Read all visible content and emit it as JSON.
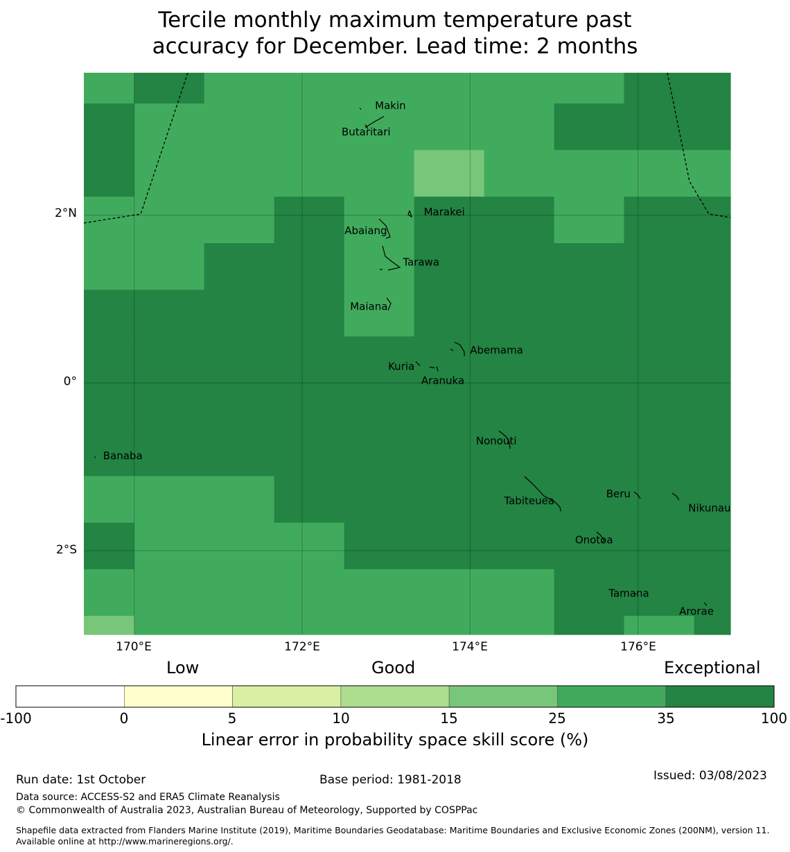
{
  "title": {
    "line1": "Tercile monthly maximum temperature past",
    "line2": "accuracy for December. Lead time: 2 months"
  },
  "map": {
    "lat_labels": [
      "2°N",
      "0°",
      "2°S"
    ],
    "lon_labels": [
      "170°E",
      "172°E",
      "174°E",
      "176°E"
    ],
    "cell_colors": {
      "c4": "#78c679",
      "c5": "#41ab5d",
      "c6": "#238443"
    },
    "grid_cols_deg_e": [
      169.4,
      170.0,
      170.833,
      171.667,
      172.5,
      173.333,
      174.167,
      175.0,
      175.833,
      176.667,
      177.1
    ],
    "grid_rows_deg_n": [
      3.7,
      3.333,
      2.778,
      2.222,
      1.667,
      1.111,
      0.556,
      0.0,
      -0.556,
      -1.111,
      -1.667,
      -2.222,
      -2.778,
      -3.0
    ],
    "cells": [
      [
        5,
        6,
        5,
        5,
        5,
        5,
        5,
        5,
        6,
        6
      ],
      [
        6,
        5,
        5,
        5,
        5,
        5,
        5,
        6,
        6,
        6
      ],
      [
        6,
        5,
        5,
        5,
        5,
        4,
        5,
        5,
        5,
        5
      ],
      [
        5,
        5,
        5,
        6,
        5,
        6,
        6,
        5,
        6,
        6
      ],
      [
        5,
        5,
        6,
        6,
        5,
        6,
        6,
        6,
        6,
        6
      ],
      [
        6,
        6,
        6,
        6,
        5,
        6,
        6,
        6,
        6,
        6
      ],
      [
        6,
        6,
        6,
        6,
        6,
        6,
        6,
        6,
        6,
        6
      ],
      [
        6,
        6,
        6,
        6,
        6,
        6,
        6,
        6,
        6,
        6
      ],
      [
        6,
        6,
        6,
        6,
        6,
        6,
        6,
        6,
        6,
        6
      ],
      [
        5,
        5,
        5,
        6,
        6,
        6,
        6,
        6,
        6,
        6
      ],
      [
        6,
        5,
        5,
        5,
        6,
        6,
        6,
        6,
        6,
        6
      ],
      [
        5,
        5,
        5,
        5,
        5,
        5,
        5,
        6,
        6,
        6
      ],
      [
        4,
        5,
        5,
        5,
        5,
        5,
        5,
        6,
        5,
        6
      ]
    ],
    "places": [
      {
        "name": "Makin",
        "lon": 172.95,
        "lat": 3.3
      },
      {
        "name": "Butaritari",
        "lon": 172.8,
        "lat": 3.07
      },
      {
        "name": "Marakei",
        "lon": 173.35,
        "lat": 2.0
      },
      {
        "name": "Abaiang",
        "lon": 173.0,
        "lat": 1.84
      },
      {
        "name": "Tarawa",
        "lon": 173.1,
        "lat": 1.45
      },
      {
        "name": "Maiana",
        "lon": 173.0,
        "lat": 0.92
      },
      {
        "name": "Abemama",
        "lon": 173.9,
        "lat": 0.4
      },
      {
        "name": "Kuria",
        "lon": 173.42,
        "lat": 0.22
      },
      {
        "name": "Aranuka",
        "lon": 173.6,
        "lat": 0.17
      },
      {
        "name": "Nonouti",
        "lon": 174.4,
        "lat": -0.6
      },
      {
        "name": "Banaba",
        "lon": 169.53,
        "lat": -0.86
      },
      {
        "name": "Tabiteuea",
        "lon": 174.9,
        "lat": -1.3
      },
      {
        "name": "Beru",
        "lon": 176.0,
        "lat": -1.33
      },
      {
        "name": "Nikunau",
        "lon": 176.45,
        "lat": -1.35
      },
      {
        "name": "Onotoa",
        "lon": 175.58,
        "lat": -1.8
      },
      {
        "name": "Tamana",
        "lon": 175.98,
        "lat": -2.5
      },
      {
        "name": "Arorae",
        "lon": 176.82,
        "lat": -2.65
      }
    ]
  },
  "colorbar": {
    "category_labels": [
      "Low",
      "Good",
      "Exceptional"
    ],
    "tick_labels": [
      "-100",
      "0",
      "5",
      "10",
      "15",
      "25",
      "35",
      "100"
    ],
    "colors": [
      "#ffffff",
      "#ffffcc",
      "#d9f0a3",
      "#addd8e",
      "#78c679",
      "#41ab5d",
      "#238443"
    ],
    "title": "Linear error in probability space skill score (%)"
  },
  "footer": {
    "run_date": "Run date: 1st October",
    "base_period": "Base period: 1981-2018",
    "issued": "Issued: 03/08/2023",
    "data_source": "Data source: ACCESS-S2 and ERA5 Climate Reanalysis",
    "copyright": "© Commonwealth of Australia 2023, Australian Bureau of Meteorology, Supported by COSPPac",
    "shapefile": "Shapefile data extracted from Flanders Marine Institute (2019), Maritime Boundaries Geodatabase: Maritime Boundaries and Exclusive Economic Zones (200NM), version 11. Available online at http://www.marineregions.org/."
  }
}
